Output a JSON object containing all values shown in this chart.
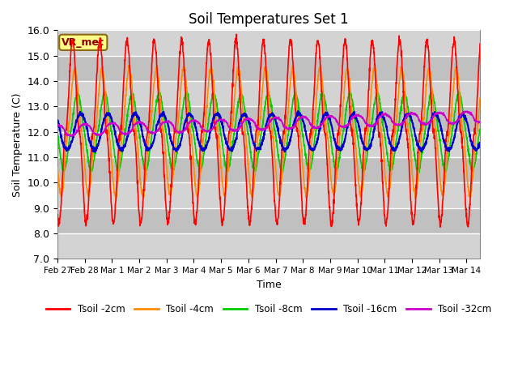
{
  "title": "Soil Temperatures Set 1",
  "xlabel": "Time",
  "ylabel": "Soil Temperature (C)",
  "ylim": [
    7.0,
    16.0
  ],
  "yticks": [
    7.0,
    8.0,
    9.0,
    10.0,
    11.0,
    12.0,
    13.0,
    14.0,
    15.0,
    16.0
  ],
  "xtick_labels": [
    "Feb 27",
    "Feb 28",
    "Mar 1",
    "Mar 2",
    "Mar 3",
    "Mar 4",
    "Mar 5",
    "Mar 6",
    "Mar 7",
    "Mar 8",
    "Mar 9",
    "Mar 10",
    "Mar 11",
    "Mar 12",
    "Mar 13",
    "Mar 14"
  ],
  "series_colors": [
    "#FF0000",
    "#FF8C00",
    "#00CC00",
    "#0000CC",
    "#CC00CC"
  ],
  "series_labels": [
    "Tsoil -2cm",
    "Tsoil -4cm",
    "Tsoil -8cm",
    "Tsoil -16cm",
    "Tsoil -32cm"
  ],
  "annotation_text": "VR_met",
  "plot_bg_light": "#DCDCDC",
  "plot_bg_dark": "#C8C8C8",
  "n_points": 2000,
  "duration_days": 15.5
}
